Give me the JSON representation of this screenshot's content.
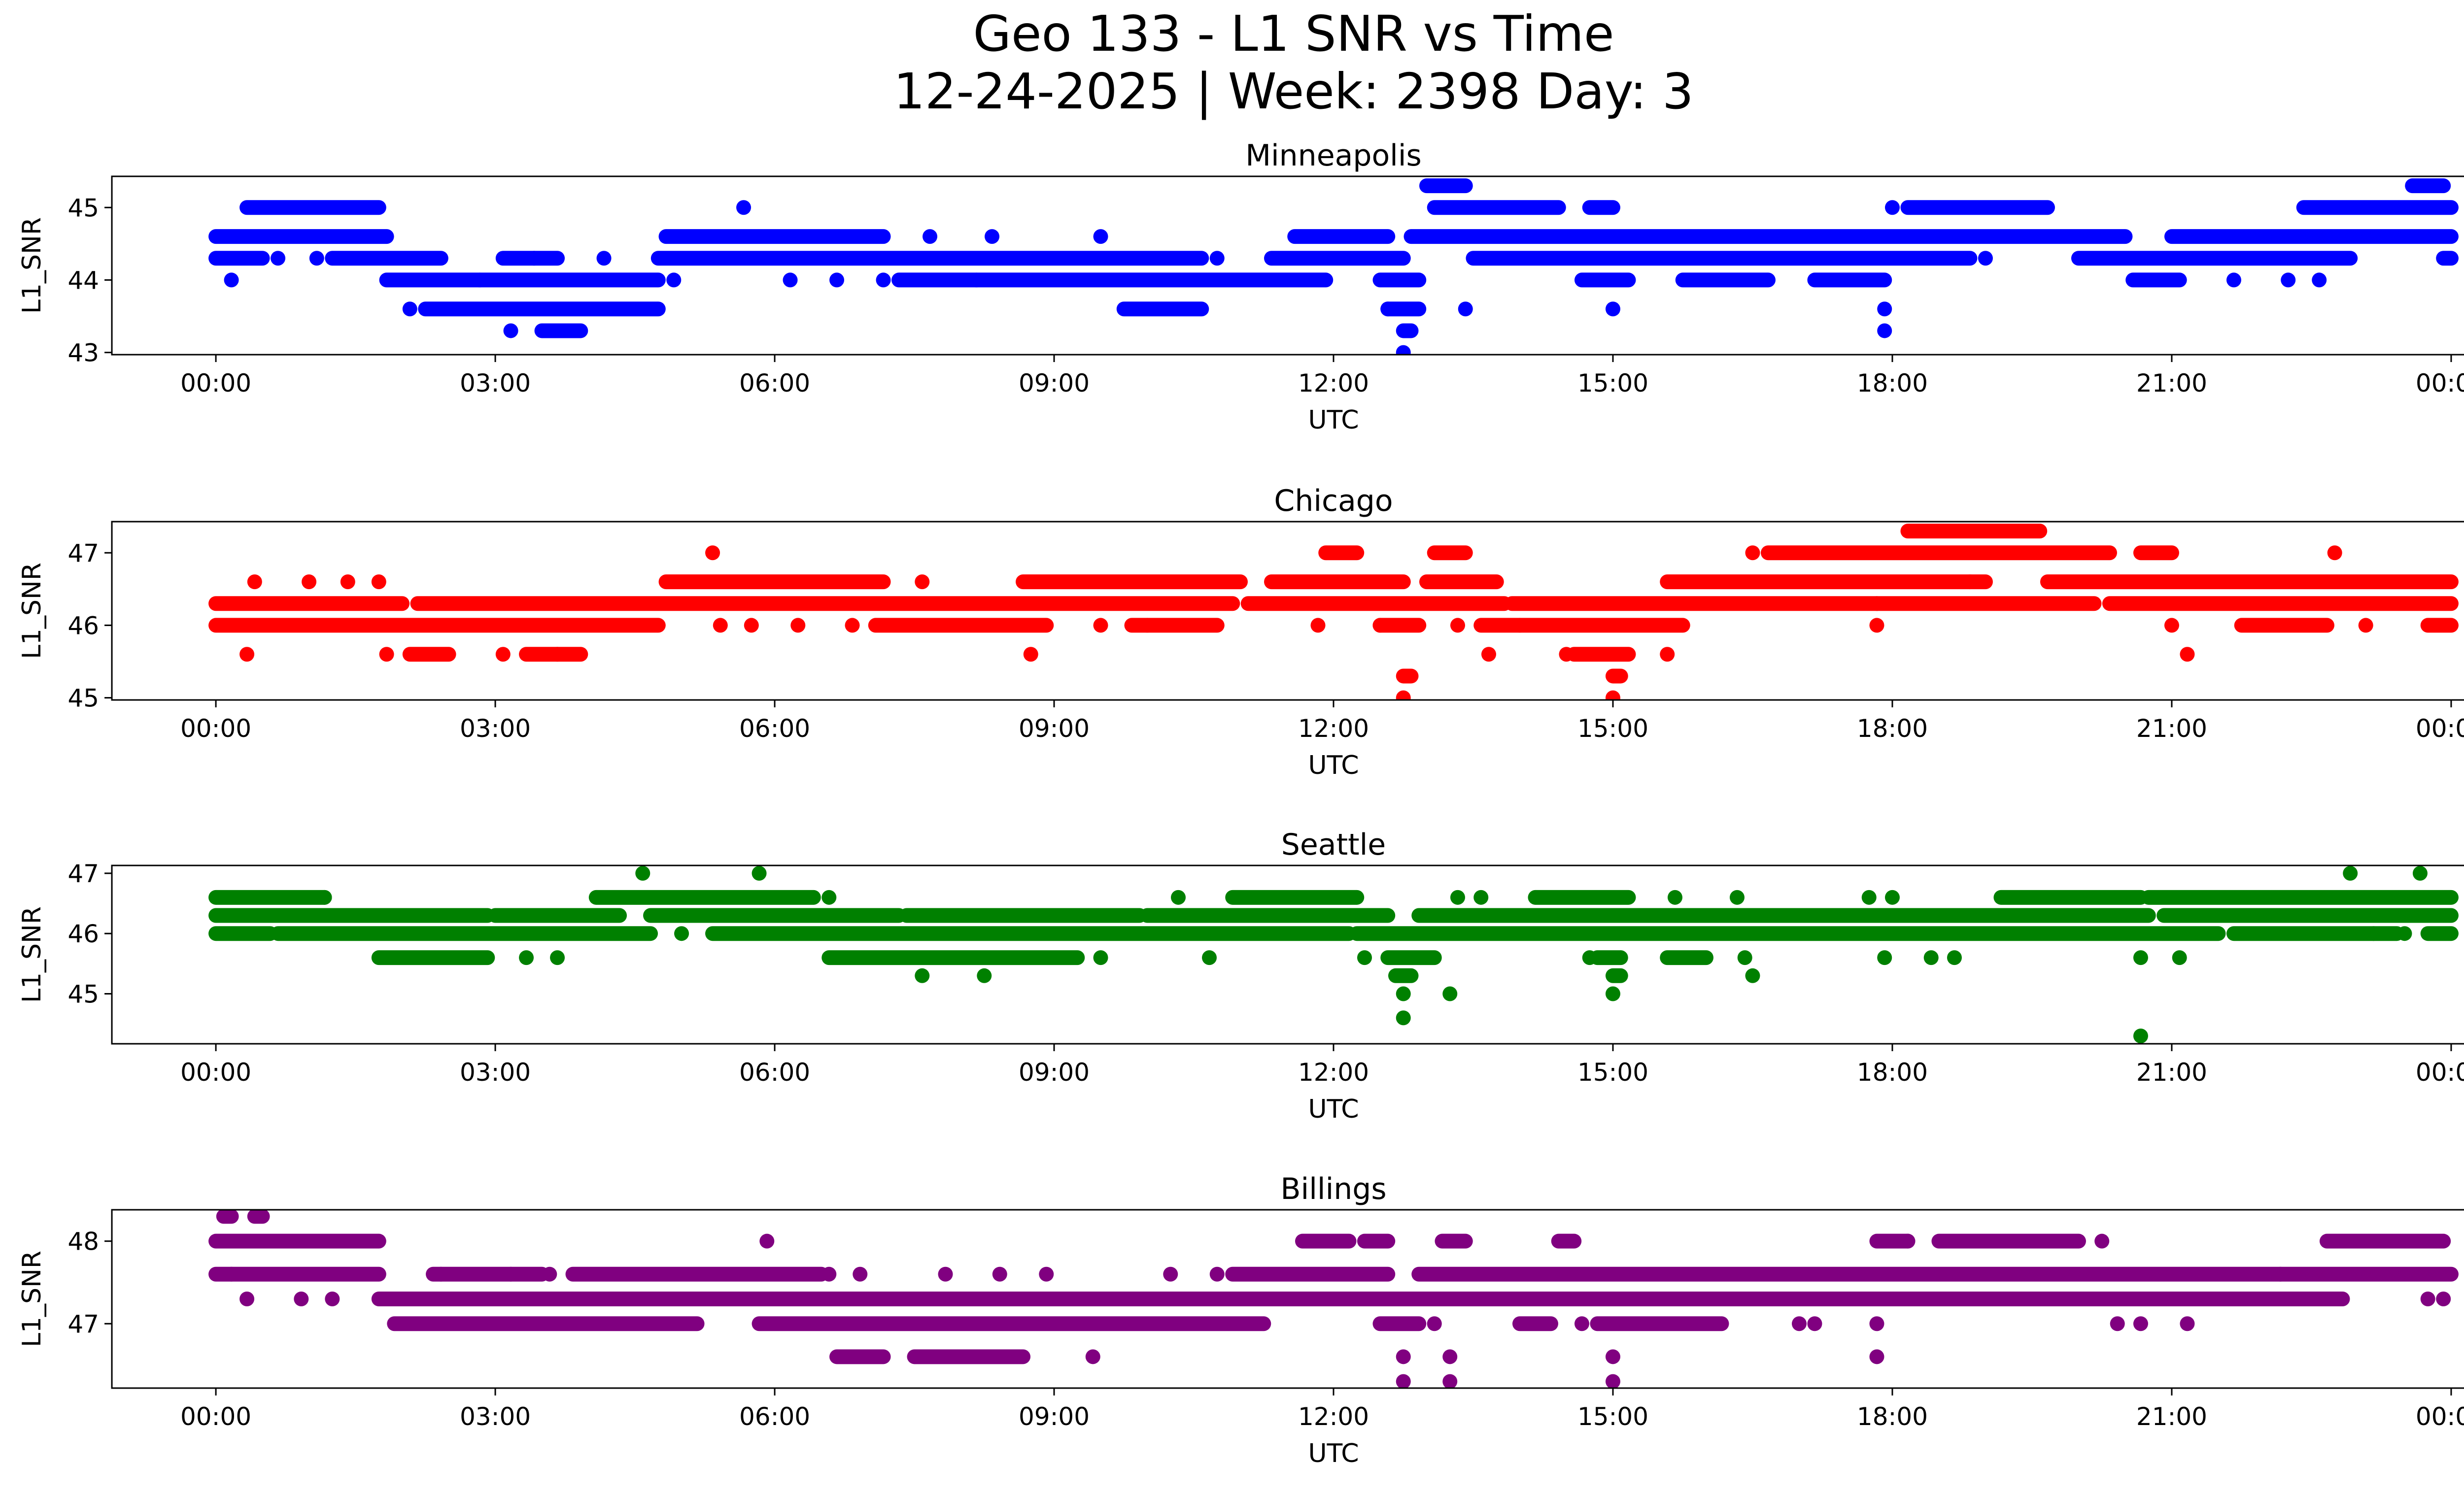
{
  "figure": {
    "title_line1": "Geo 133 - L1 SNR vs Time",
    "title_line2": "12-24-2025 | Week: 2398 Day: 3"
  },
  "chart_data": [
    {
      "type": "scatter",
      "title": "Minneapolis",
      "xlabel": "UTC",
      "ylabel": "L1_SNR",
      "color": "#0000ff",
      "xlim": [
        "-01:07",
        "25:07"
      ],
      "ylim": [
        42.97,
        45.43
      ],
      "xticks": [
        "00:00",
        "03:00",
        "06:00",
        "09:00",
        "12:00",
        "15:00",
        "18:00",
        "21:00",
        "00:00"
      ],
      "yticks": [
        43,
        44,
        45
      ],
      "bands": [
        {
          "y": 45.3,
          "ranges": [
            [
              "13:00",
              "13:25"
            ],
            [
              "23:35",
              "23:55"
            ]
          ]
        },
        {
          "y": 45.0,
          "ranges": [
            [
              "00:20",
              "01:45"
            ],
            [
              "13:05",
              "14:25"
            ],
            [
              "14:45",
              "15:00"
            ],
            [
              "18:10",
              "19:40"
            ],
            [
              "22:25",
              "24:00"
            ]
          ]
        },
        {
          "y": 44.6,
          "ranges": [
            [
              "00:00",
              "01:50"
            ],
            [
              "04:50",
              "07:10"
            ],
            [
              "11:35",
              "12:35"
            ],
            [
              "12:50",
              "20:30"
            ],
            [
              "21:00",
              "24:00"
            ]
          ]
        },
        {
          "y": 44.3,
          "ranges": [
            [
              "00:00",
              "00:30"
            ],
            [
              "01:15",
              "02:25"
            ],
            [
              "03:05",
              "03:40"
            ],
            [
              "04:45",
              "10:35"
            ],
            [
              "11:20",
              "12:45"
            ],
            [
              "13:30",
              "18:50"
            ],
            [
              "20:00",
              "22:55"
            ],
            [
              "23:55",
              "24:00"
            ]
          ]
        },
        {
          "y": 44.0,
          "ranges": [
            [
              "01:50",
              "04:45"
            ],
            [
              "07:20",
              "11:55"
            ],
            [
              "12:30",
              "12:55"
            ],
            [
              "14:40",
              "15:10"
            ],
            [
              "15:45",
              "16:40"
            ],
            [
              "17:10",
              "17:55"
            ],
            [
              "20:35",
              "21:05"
            ]
          ]
        },
        {
          "y": 43.6,
          "ranges": [
            [
              "02:15",
              "04:45"
            ],
            [
              "09:45",
              "10:35"
            ],
            [
              "12:35",
              "12:55"
            ]
          ]
        },
        {
          "y": 43.3,
          "ranges": [
            [
              "03:30",
              "03:55"
            ],
            [
              "12:45",
              "12:50"
            ]
          ]
        }
      ],
      "points": [
        [
          "00:10",
          44.0
        ],
        [
          "00:40",
          44.3
        ],
        [
          "01:05",
          44.3
        ],
        [
          "02:05",
          43.6
        ],
        [
          "02:50",
          44.0
        ],
        [
          "03:10",
          43.3
        ],
        [
          "03:25",
          44.3
        ],
        [
          "04:10",
          44.3
        ],
        [
          "04:55",
          44.0
        ],
        [
          "05:40",
          45.0
        ],
        [
          "06:10",
          44.0
        ],
        [
          "06:40",
          44.0
        ],
        [
          "07:10",
          44.0
        ],
        [
          "07:40",
          44.6
        ],
        [
          "08:10",
          44.0
        ],
        [
          "08:20",
          44.6
        ],
        [
          "09:30",
          44.6
        ],
        [
          "10:45",
          44.3
        ],
        [
          "12:35",
          43.6
        ],
        [
          "12:45",
          43.0
        ],
        [
          "13:25",
          43.6
        ],
        [
          "15:00",
          43.6
        ],
        [
          "17:55",
          43.6
        ],
        [
          "17:55",
          43.3
        ],
        [
          "18:00",
          45.0
        ],
        [
          "19:00",
          44.3
        ],
        [
          "21:40",
          44.0
        ],
        [
          "22:15",
          44.0
        ],
        [
          "22:35",
          44.0
        ]
      ]
    },
    {
      "type": "scatter",
      "title": "Chicago",
      "xlabel": "UTC",
      "ylabel": "L1_SNR",
      "color": "#ff0000",
      "xlim": [
        "-01:07",
        "25:07"
      ],
      "ylim": [
        44.97,
        47.43
      ],
      "xticks": [
        "00:00",
        "03:00",
        "06:00",
        "09:00",
        "12:00",
        "15:00",
        "18:00",
        "21:00",
        "00:00"
      ],
      "yticks": [
        45,
        46,
        47
      ],
      "bands": [
        {
          "y": 47.3,
          "ranges": [
            [
              "18:10",
              "19:35"
            ]
          ]
        },
        {
          "y": 47.0,
          "ranges": [
            [
              "16:40",
              "20:20"
            ],
            [
              "20:40",
              "21:00"
            ],
            [
              "13:05",
              "13:25"
            ],
            [
              "11:55",
              "12:15"
            ]
          ]
        },
        {
          "y": 46.6,
          "ranges": [
            [
              "04:50",
              "07:10"
            ],
            [
              "08:40",
              "11:00"
            ],
            [
              "11:20",
              "12:45"
            ],
            [
              "13:00",
              "13:45"
            ],
            [
              "15:35",
              "19:00"
            ],
            [
              "19:40",
              "24:00"
            ]
          ]
        },
        {
          "y": 46.3,
          "ranges": [
            [
              "00:00",
              "02:00"
            ],
            [
              "02:10",
              "10:55"
            ],
            [
              "11:05",
              "13:50"
            ],
            [
              "13:55",
              "20:10"
            ],
            [
              "20:20",
              "24:00"
            ]
          ]
        },
        {
          "y": 46.0,
          "ranges": [
            [
              "00:00",
              "04:45"
            ],
            [
              "07:05",
              "08:55"
            ],
            [
              "09:50",
              "10:45"
            ],
            [
              "12:30",
              "12:55"
            ],
            [
              "13:35",
              "15:45"
            ],
            [
              "21:45",
              "22:40"
            ],
            [
              "23:45",
              "24:00"
            ]
          ]
        },
        {
          "y": 45.6,
          "ranges": [
            [
              "02:05",
              "02:30"
            ],
            [
              "03:20",
              "03:55"
            ],
            [
              "14:35",
              "15:10"
            ]
          ]
        },
        {
          "y": 45.3,
          "ranges": [
            [
              "12:45",
              "12:50"
            ],
            [
              "15:00",
              "15:05"
            ]
          ]
        }
      ],
      "points": [
        [
          "00:25",
          46.6
        ],
        [
          "01:00",
          46.6
        ],
        [
          "01:25",
          46.6
        ],
        [
          "01:45",
          46.6
        ],
        [
          "00:20",
          45.6
        ],
        [
          "01:50",
          45.6
        ],
        [
          "03:05",
          45.6
        ],
        [
          "03:40",
          45.6
        ],
        [
          "05:20",
          47.0
        ],
        [
          "05:25",
          46.0
        ],
        [
          "05:45",
          46.0
        ],
        [
          "06:15",
          46.0
        ],
        [
          "06:50",
          46.0
        ],
        [
          "07:35",
          46.6
        ],
        [
          "08:45",
          45.6
        ],
        [
          "09:30",
          46.0
        ],
        [
          "10:00",
          46.0
        ],
        [
          "11:50",
          46.0
        ],
        [
          "12:30",
          46.0
        ],
        [
          "12:45",
          45.0
        ],
        [
          "13:20",
          46.0
        ],
        [
          "13:40",
          45.6
        ],
        [
          "14:00",
          46.0
        ],
        [
          "14:30",
          45.6
        ],
        [
          "15:00",
          45.0
        ],
        [
          "15:35",
          45.6
        ],
        [
          "16:30",
          47.0
        ],
        [
          "17:50",
          46.3
        ],
        [
          "17:50",
          46.0
        ],
        [
          "18:50",
          46.6
        ],
        [
          "21:00",
          46.0
        ],
        [
          "21:10",
          45.6
        ],
        [
          "22:45",
          47.0
        ],
        [
          "23:05",
          46.0
        ]
      ]
    },
    {
      "type": "scatter",
      "title": "Seattle",
      "xlabel": "UTC",
      "ylabel": "L1_SNR",
      "color": "#008000",
      "xlim": [
        "-01:07",
        "25:07"
      ],
      "ylim": [
        44.17,
        47.13
      ],
      "xticks": [
        "00:00",
        "03:00",
        "06:00",
        "09:00",
        "12:00",
        "15:00",
        "18:00",
        "21:00",
        "00:00"
      ],
      "yticks": [
        45,
        46,
        47
      ],
      "bands": [
        {
          "y": 46.6,
          "ranges": [
            [
              "00:00",
              "01:10"
            ],
            [
              "04:05",
              "06:25"
            ],
            [
              "10:55",
              "12:15"
            ],
            [
              "14:10",
              "15:10"
            ],
            [
              "19:10",
              "20:40"
            ],
            [
              "20:45",
              "24:00"
            ]
          ]
        },
        {
          "y": 46.3,
          "ranges": [
            [
              "00:00",
              "02:55"
            ],
            [
              "03:00",
              "04:20"
            ],
            [
              "04:40",
              "07:20"
            ],
            [
              "07:25",
              "09:55"
            ],
            [
              "10:00",
              "12:35"
            ],
            [
              "12:55",
              "20:45"
            ],
            [
              "20:55",
              "24:00"
            ]
          ]
        },
        {
          "y": 46.0,
          "ranges": [
            [
              "00:00",
              "00:35"
            ],
            [
              "00:40",
              "04:40"
            ],
            [
              "05:20",
              "12:10"
            ],
            [
              "12:15",
              "21:30"
            ],
            [
              "21:40",
              "23:25"
            ],
            [
              "23:45",
              "24:00"
            ]
          ]
        },
        {
          "y": 45.6,
          "ranges": [
            [
              "01:45",
              "02:55"
            ],
            [
              "06:35",
              "09:15"
            ],
            [
              "12:35",
              "13:05"
            ],
            [
              "14:50",
              "15:05"
            ],
            [
              "15:35",
              "16:00"
            ]
          ]
        },
        {
          "y": 45.3,
          "ranges": [
            [
              "12:40",
              "12:50"
            ],
            [
              "15:00",
              "15:05"
            ]
          ]
        }
      ],
      "points": [
        [
          "01:10",
          46.6
        ],
        [
          "04:35",
          47.0
        ],
        [
          "05:00",
          46.0
        ],
        [
          "05:50",
          47.0
        ],
        [
          "03:20",
          45.6
        ],
        [
          "03:40",
          45.6
        ],
        [
          "06:35",
          46.6
        ],
        [
          "07:35",
          45.3
        ],
        [
          "08:15",
          45.3
        ],
        [
          "09:30",
          45.6
        ],
        [
          "10:20",
          46.6
        ],
        [
          "10:40",
          45.6
        ],
        [
          "12:20",
          45.6
        ],
        [
          "12:45",
          45.0
        ],
        [
          "12:45",
          44.6
        ],
        [
          "13:15",
          45.0
        ],
        [
          "13:20",
          46.6
        ],
        [
          "13:35",
          46.6
        ],
        [
          "14:45",
          45.6
        ],
        [
          "15:00",
          45.0
        ],
        [
          "15:40",
          46.6
        ],
        [
          "16:20",
          46.6
        ],
        [
          "16:25",
          45.6
        ],
        [
          "16:30",
          45.3
        ],
        [
          "17:45",
          46.6
        ],
        [
          "17:55",
          45.6
        ],
        [
          "18:00",
          46.6
        ],
        [
          "18:25",
          45.6
        ],
        [
          "18:40",
          45.6
        ],
        [
          "20:40",
          45.6
        ],
        [
          "20:40",
          44.3
        ],
        [
          "21:05",
          45.6
        ],
        [
          "22:55",
          47.0
        ],
        [
          "23:10",
          46.0
        ],
        [
          "23:30",
          46.0
        ],
        [
          "23:40",
          47.0
        ]
      ]
    },
    {
      "type": "scatter",
      "title": "Billings",
      "xlabel": "UTC",
      "ylabel": "L1_SNR",
      "color": "#800080",
      "xlim": [
        "-01:07",
        "25:07"
      ],
      "ylim": [
        46.22,
        48.38
      ],
      "xticks": [
        "00:00",
        "03:00",
        "06:00",
        "09:00",
        "12:00",
        "15:00",
        "18:00",
        "21:00",
        "00:00"
      ],
      "yticks": [
        47,
        48
      ],
      "bands": [
        {
          "y": 48.3,
          "ranges": [
            [
              "00:05",
              "00:10"
            ],
            [
              "00:25",
              "00:30"
            ]
          ]
        },
        {
          "y": 48.0,
          "ranges": [
            [
              "00:00",
              "01:45"
            ],
            [
              "11:40",
              "12:10"
            ],
            [
              "12:20",
              "12:35"
            ],
            [
              "13:10",
              "13:25"
            ],
            [
              "14:25",
              "14:35"
            ],
            [
              "17:50",
              "18:10"
            ],
            [
              "18:30",
              "20:00"
            ],
            [
              "22:40",
              "23:55"
            ]
          ]
        },
        {
          "y": 47.6,
          "ranges": [
            [
              "00:00",
              "01:45"
            ],
            [
              "02:20",
              "03:30"
            ],
            [
              "03:50",
              "06:30"
            ],
            [
              "10:55",
              "12:35"
            ],
            [
              "12:55",
              "24:00"
            ]
          ]
        },
        {
          "y": 47.3,
          "ranges": [
            [
              "01:45",
              "20:15"
            ],
            [
              "20:00",
              "22:50"
            ]
          ]
        },
        {
          "y": 47.0,
          "ranges": [
            [
              "01:55",
              "05:10"
            ],
            [
              "05:50",
              "11:15"
            ],
            [
              "12:30",
              "12:55"
            ],
            [
              "14:00",
              "14:20"
            ],
            [
              "14:50",
              "16:10"
            ]
          ]
        },
        {
          "y": 46.6,
          "ranges": [
            [
              "06:40",
              "07:10"
            ],
            [
              "07:30",
              "08:40"
            ]
          ]
        }
      ],
      "points": [
        [
          "00:10",
          47.6
        ],
        [
          "00:20",
          47.3
        ],
        [
          "00:55",
          47.3
        ],
        [
          "01:15",
          47.3
        ],
        [
          "02:25",
          47.6
        ],
        [
          "03:10",
          47.6
        ],
        [
          "03:35",
          47.6
        ],
        [
          "05:55",
          48.0
        ],
        [
          "06:35",
          47.6
        ],
        [
          "06:55",
          47.6
        ],
        [
          "07:50",
          47.6
        ],
        [
          "08:25",
          47.6
        ],
        [
          "08:55",
          47.6
        ],
        [
          "09:25",
          46.6
        ],
        [
          "10:15",
          47.6
        ],
        [
          "10:45",
          47.6
        ],
        [
          "12:45",
          46.6
        ],
        [
          "12:45",
          46.3
        ],
        [
          "13:05",
          47.0
        ],
        [
          "13:15",
          46.6
        ],
        [
          "13:15",
          46.3
        ],
        [
          "14:40",
          47.0
        ],
        [
          "15:00",
          46.6
        ],
        [
          "15:00",
          46.3
        ],
        [
          "16:40",
          47.3
        ],
        [
          "17:00",
          47.0
        ],
        [
          "17:10",
          47.0
        ],
        [
          "17:50",
          47.0
        ],
        [
          "17:50",
          46.6
        ],
        [
          "18:10",
          48.0
        ],
        [
          "19:00",
          47.3
        ],
        [
          "20:15",
          48.0
        ],
        [
          "20:25",
          47.0
        ],
        [
          "20:40",
          47.0
        ],
        [
          "21:10",
          47.0
        ],
        [
          "22:10",
          47.6
        ],
        [
          "23:45",
          47.3
        ],
        [
          "23:55",
          47.3
        ]
      ]
    }
  ]
}
